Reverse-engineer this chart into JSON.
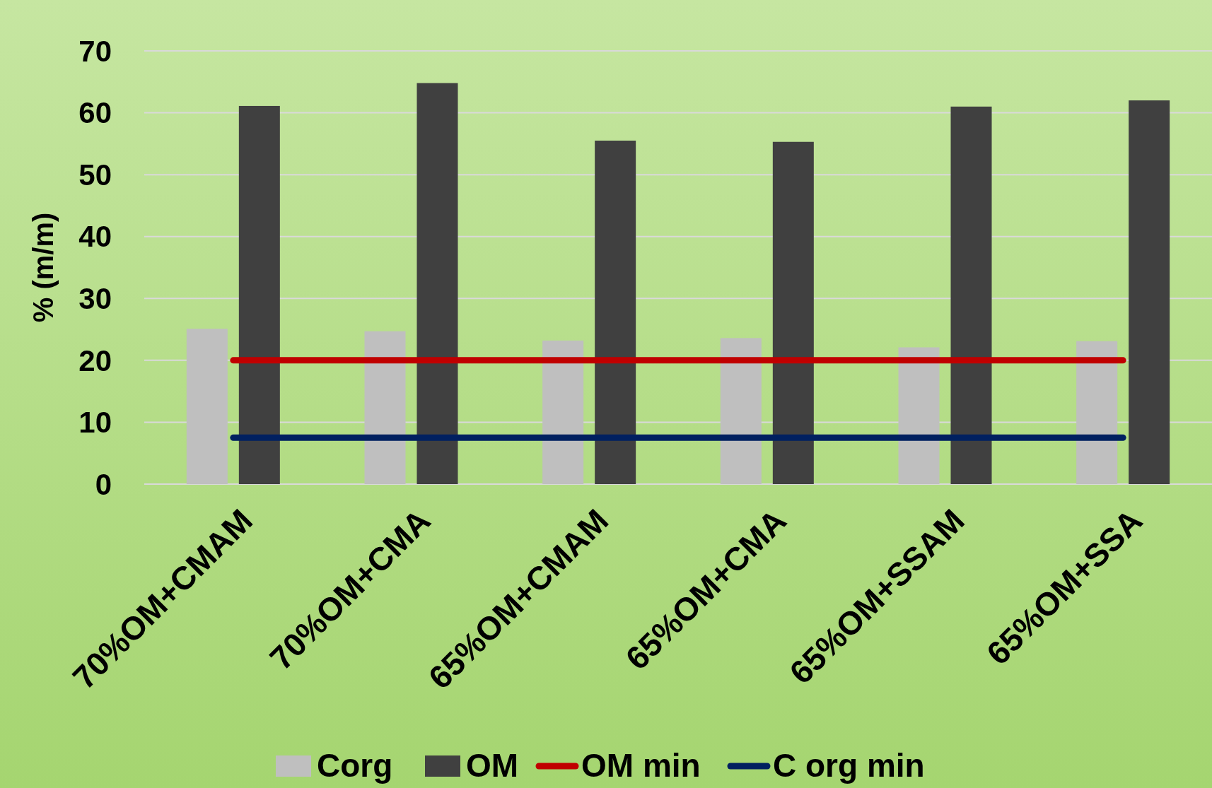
{
  "chart_data": {
    "type": "bar",
    "ylabel": "% (m/m)",
    "categories": [
      "70%OM+CMAM",
      "70%OM+CMA",
      "65%OM+CMAM",
      "65%OM+CMA",
      "65%OM+SSAM",
      "65%OM+SSA"
    ],
    "series": [
      {
        "name": "Corg",
        "color": "#bfbfbf",
        "values": [
          25.1,
          24.7,
          23.2,
          23.6,
          22.1,
          23.1
        ]
      },
      {
        "name": "OM",
        "color": "#404040",
        "values": [
          61.1,
          64.8,
          55.5,
          55.3,
          61.0,
          62.0
        ]
      },
      {
        "name": "OM min",
        "type": "line",
        "color": "#c00000",
        "values": [
          20,
          20,
          20,
          20,
          20,
          20
        ]
      },
      {
        "name": "C org min",
        "type": "line",
        "color": "#002060",
        "values": [
          7.5,
          7.5,
          7.5,
          7.5,
          7.5,
          7.5
        ]
      }
    ],
    "ylim": [
      0,
      70
    ],
    "yticks": [
      0,
      10,
      20,
      30,
      40,
      50,
      60,
      70
    ],
    "grid": "y",
    "legend": "bottom"
  }
}
